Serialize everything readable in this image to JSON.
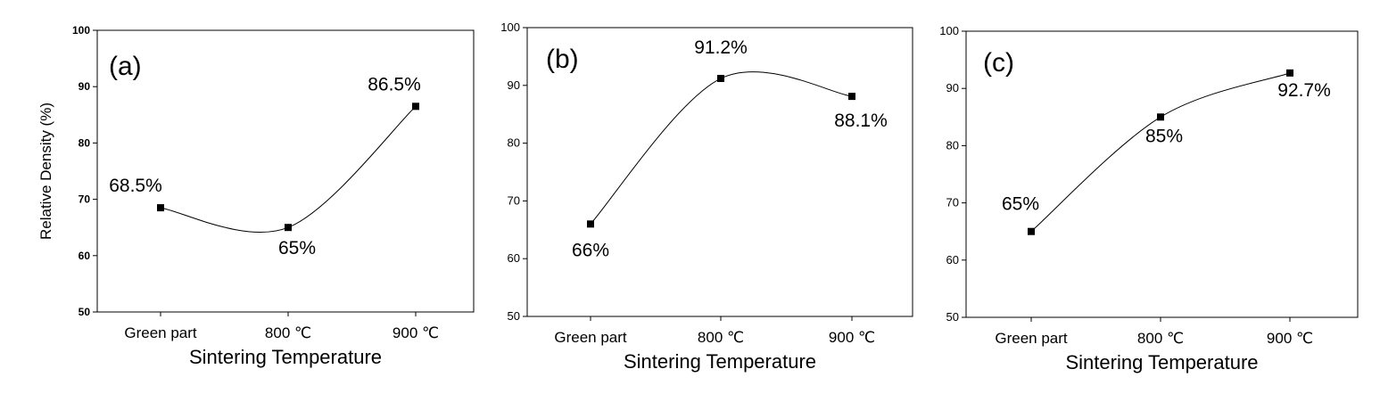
{
  "chart_data": [
    {
      "type": "line",
      "panel_label": "(a)",
      "categories": [
        "Green part",
        "800 ℃",
        "900 ℃"
      ],
      "values": [
        68.5,
        65,
        86.5
      ],
      "data_labels": [
        "68.5%",
        "65%",
        "86.5%"
      ],
      "xlabel": "Sintering Temperature",
      "ylabel": "Relative Density (%)",
      "ylim": [
        50,
        100
      ],
      "yticks": [
        "50",
        "60",
        "70",
        "80",
        "90",
        "100"
      ],
      "grid": false,
      "smooth": true
    },
    {
      "type": "line",
      "panel_label": "(b)",
      "categories": [
        "Green part",
        "800 ℃",
        "900 ℃"
      ],
      "values": [
        66,
        91.2,
        88.1
      ],
      "data_labels": [
        "66%",
        "91.2%",
        "88.1%"
      ],
      "xlabel": "Sintering Temperature",
      "ylabel": "",
      "ylim": [
        50,
        100
      ],
      "yticks": [
        "50",
        "60",
        "70",
        "80",
        "90",
        "100"
      ],
      "grid": false,
      "smooth": true
    },
    {
      "type": "line",
      "panel_label": "(c)",
      "categories": [
        "Green part",
        "800 ℃",
        "900 ℃"
      ],
      "values": [
        65,
        85,
        92.7
      ],
      "data_labels": [
        "65%",
        "85%",
        "92.7%"
      ],
      "xlabel": "Sintering Temperature",
      "ylabel": "",
      "ylim": [
        50,
        100
      ],
      "yticks": [
        "50",
        "60",
        "70",
        "80",
        "90",
        "100"
      ],
      "grid": false,
      "smooth": true
    }
  ]
}
